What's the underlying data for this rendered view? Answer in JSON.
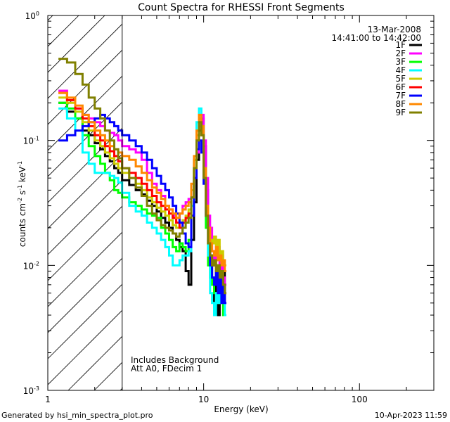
{
  "chart_data": {
    "type": "line",
    "title": "Count Spectra for RHESSI Front Segments",
    "xlabel": "Energy (keV)",
    "ylabel_base": "counts cm",
    "ylabel_exp1": "-2",
    "ylabel_mid": " s",
    "ylabel_exp2": "-1",
    "ylabel_end": " keV",
    "ylabel_exp3": "-1",
    "x_scale": "log",
    "y_scale": "log",
    "xlim": [
      1,
      300
    ],
    "ylim": [
      0.001,
      1
    ],
    "x_ticks": [
      {
        "value": 1,
        "label": "1"
      },
      {
        "value": 10,
        "label": "10"
      },
      {
        "value": 100,
        "label": "100"
      }
    ],
    "y_ticks": [
      {
        "value": 0.001,
        "base": "10",
        "exp": "-3"
      },
      {
        "value": 0.01,
        "base": "10",
        "exp": "-2"
      },
      {
        "value": 0.1,
        "base": "10",
        "exp": "-1"
      },
      {
        "value": 1,
        "base": "10",
        "exp": "0"
      }
    ],
    "excluded_region": {
      "x_min": 1,
      "x_max": 3,
      "style": "hatched"
    },
    "date": "13-Mar-2008",
    "time_range": "14:41:00 to 14:42:00",
    "annotations": [
      "Includes Background",
      "Att A0, FDecim 1"
    ],
    "legend_position": "top-right",
    "series": [
      {
        "name": "1F",
        "color": "#000000"
      },
      {
        "name": "2F",
        "color": "#ff00ff"
      },
      {
        "name": "3F",
        "color": "#00ff00"
      },
      {
        "name": "4F",
        "color": "#00ffff"
      },
      {
        "name": "5F",
        "color": "#cccc00"
      },
      {
        "name": "6F",
        "color": "#ff0000"
      },
      {
        "name": "7F",
        "color": "#0000ff"
      },
      {
        "name": "8F",
        "color": "#ff8800"
      },
      {
        "name": "9F",
        "color": "#808000"
      }
    ],
    "energy_edges": [
      1.17,
      1.33,
      1.5,
      1.67,
      1.83,
      2.0,
      2.17,
      2.33,
      2.5,
      2.67,
      2.83,
      3.0,
      3.33,
      3.67,
      4.0,
      4.33,
      4.67,
      5.0,
      5.33,
      5.67,
      6.0,
      6.33,
      6.67,
      7.0,
      7.33,
      7.67,
      8.0,
      8.33,
      8.67,
      9.0,
      9.33,
      9.67,
      10.0,
      10.33,
      10.67,
      11.0,
      11.33,
      11.67,
      12.0,
      12.33,
      12.67,
      13.0,
      13.33,
      13.67,
      14.0
    ],
    "series_values": {
      "1F": [
        0.2,
        0.17,
        0.15,
        0.12,
        0.11,
        0.095,
        0.085,
        0.075,
        0.068,
        0.06,
        0.055,
        0.048,
        0.044,
        0.04,
        0.037,
        0.033,
        0.03,
        0.027,
        0.024,
        0.022,
        0.02,
        0.018,
        0.016,
        0.014,
        0.013,
        0.009,
        0.007,
        0.016,
        0.032,
        0.07,
        0.12,
        0.15,
        0.09,
        0.04,
        0.02,
        0.012,
        0.008,
        0.005,
        0.009,
        0.004,
        0.012,
        0.006,
        0.009,
        0.005
      ],
      "2F": [
        0.25,
        0.21,
        0.18,
        0.16,
        0.15,
        0.14,
        0.13,
        0.12,
        0.115,
        0.11,
        0.1,
        0.09,
        0.085,
        0.08,
        0.07,
        0.055,
        0.045,
        0.04,
        0.036,
        0.03,
        0.028,
        0.025,
        0.022,
        0.026,
        0.03,
        0.032,
        0.034,
        0.035,
        0.05,
        0.08,
        0.13,
        0.16,
        0.1,
        0.05,
        0.025,
        0.02,
        0.013,
        0.011,
        0.015,
        0.014,
        0.009,
        0.012,
        0.008,
        0.007
      ],
      "3F": [
        0.2,
        0.18,
        0.15,
        0.11,
        0.09,
        0.075,
        0.065,
        0.055,
        0.048,
        0.04,
        0.038,
        0.035,
        0.032,
        0.03,
        0.028,
        0.026,
        0.025,
        0.024,
        0.02,
        0.018,
        0.016,
        0.014,
        0.013,
        0.015,
        0.014,
        0.013,
        0.016,
        0.03,
        0.06,
        0.12,
        0.16,
        0.11,
        0.05,
        0.02,
        0.01,
        0.008,
        0.007,
        0.006,
        0.005,
        0.007,
        0.005,
        0.006,
        0.004,
        0.004
      ],
      "4F": [
        0.18,
        0.15,
        0.12,
        0.08,
        0.065,
        0.055,
        0.055,
        0.055,
        0.052,
        0.05,
        0.046,
        0.038,
        0.03,
        0.027,
        0.025,
        0.022,
        0.02,
        0.018,
        0.016,
        0.014,
        0.012,
        0.01,
        0.01,
        0.011,
        0.012,
        0.012,
        0.013,
        0.03,
        0.07,
        0.14,
        0.18,
        0.13,
        0.06,
        0.025,
        0.012,
        0.006,
        0.005,
        0.004,
        0.006,
        0.005,
        0.007,
        0.006,
        0.005,
        0.004
      ],
      "5F": [
        0.22,
        0.2,
        0.17,
        0.14,
        0.12,
        0.1,
        0.09,
        0.08,
        0.072,
        0.065,
        0.06,
        0.055,
        0.05,
        0.045,
        0.04,
        0.035,
        0.032,
        0.029,
        0.027,
        0.025,
        0.023,
        0.021,
        0.02,
        0.022,
        0.023,
        0.025,
        0.028,
        0.04,
        0.07,
        0.11,
        0.15,
        0.12,
        0.06,
        0.03,
        0.018,
        0.016,
        0.015,
        0.017,
        0.014,
        0.016,
        0.012,
        0.013,
        0.011,
        0.01
      ],
      "6F": [
        0.24,
        0.21,
        0.18,
        0.15,
        0.13,
        0.11,
        0.1,
        0.09,
        0.082,
        0.075,
        0.068,
        0.06,
        0.055,
        0.05,
        0.045,
        0.04,
        0.036,
        0.032,
        0.03,
        0.028,
        0.026,
        0.024,
        0.022,
        0.02,
        0.022,
        0.024,
        0.026,
        0.035,
        0.06,
        0.1,
        0.14,
        0.11,
        0.05,
        0.025,
        0.015,
        0.012,
        0.01,
        0.011,
        0.009,
        0.01,
        0.008,
        0.009,
        0.007,
        0.006
      ],
      "7F": [
        0.1,
        0.11,
        0.12,
        0.13,
        0.14,
        0.15,
        0.16,
        0.15,
        0.14,
        0.13,
        0.12,
        0.11,
        0.1,
        0.09,
        0.08,
        0.07,
        0.06,
        0.052,
        0.045,
        0.04,
        0.035,
        0.03,
        0.026,
        0.022,
        0.018,
        0.015,
        0.014,
        0.025,
        0.05,
        0.085,
        0.1,
        0.08,
        0.045,
        0.025,
        0.015,
        0.01,
        0.008,
        0.007,
        0.009,
        0.006,
        0.008,
        0.005,
        0.007,
        0.005
      ],
      "8F": [
        0.24,
        0.22,
        0.19,
        0.16,
        0.14,
        0.12,
        0.11,
        0.1,
        0.09,
        0.085,
        0.08,
        0.075,
        0.07,
        0.062,
        0.055,
        0.048,
        0.042,
        0.038,
        0.034,
        0.03,
        0.028,
        0.026,
        0.024,
        0.026,
        0.028,
        0.03,
        0.032,
        0.045,
        0.075,
        0.12,
        0.16,
        0.13,
        0.06,
        0.03,
        0.02,
        0.015,
        0.013,
        0.012,
        0.014,
        0.011,
        0.012,
        0.01,
        0.011,
        0.009
      ],
      "9F": [
        0.45,
        0.42,
        0.34,
        0.28,
        0.22,
        0.18,
        0.15,
        0.12,
        0.1,
        0.085,
        0.072,
        0.06,
        0.05,
        0.042,
        0.036,
        0.03,
        0.026,
        0.023,
        0.021,
        0.02,
        0.019,
        0.018,
        0.017,
        0.018,
        0.02,
        0.022,
        0.024,
        0.035,
        0.06,
        0.1,
        0.14,
        0.11,
        0.05,
        0.025,
        0.015,
        0.012,
        0.01,
        0.011,
        0.009,
        0.01,
        0.008,
        0.009,
        0.007,
        0.006
      ]
    }
  },
  "footer": {
    "generated_by": "Generated by hsi_min_spectra_plot.pro",
    "timestamp": "10-Apr-2023 11:59"
  }
}
